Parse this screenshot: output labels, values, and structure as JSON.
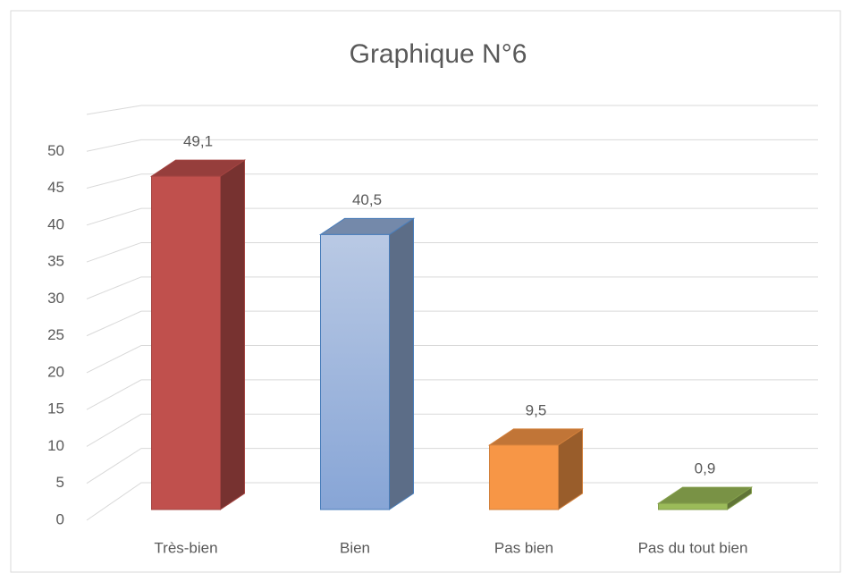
{
  "chart_data": {
    "type": "bar3d",
    "title": "Graphique N°6",
    "categories": [
      "Très-bien",
      "Bien",
      "Pas bien",
      "Pas du tout bien"
    ],
    "values": [
      49.1,
      40.5,
      9.5,
      0.9
    ],
    "value_labels": [
      "49,1",
      "40,5",
      "9,5",
      "0,9"
    ],
    "colors": [
      "#c0504d",
      "#95b0da",
      "#f79646",
      "#9bbb59"
    ],
    "ylim": [
      0,
      55
    ],
    "yticks": [
      0,
      5,
      10,
      15,
      20,
      25,
      30,
      35,
      40,
      45,
      50
    ],
    "grid": true
  }
}
